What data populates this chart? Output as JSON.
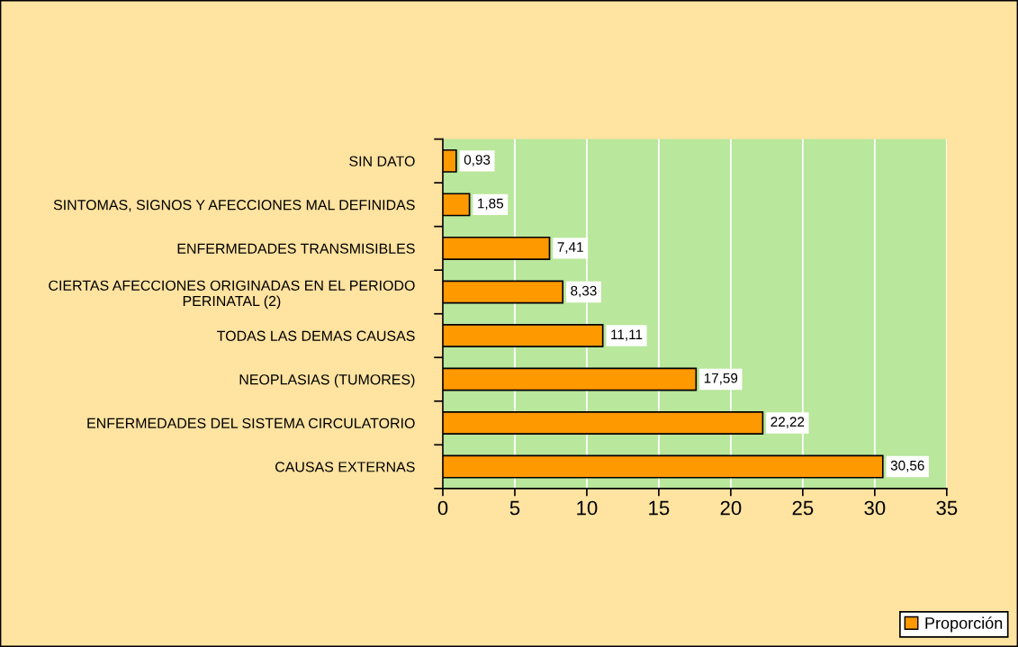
{
  "chart_data": {
    "type": "bar",
    "orientation": "horizontal",
    "categories": [
      "SIN DATO",
      "SINTOMAS, SIGNOS Y AFECCIONES MAL DEFINIDAS",
      "ENFERMEDADES TRANSMISIBLES",
      "CIERTAS AFECCIONES ORIGINADAS EN EL PERIODO\nPERINATAL (2)",
      "TODAS LAS DEMAS CAUSAS",
      "NEOPLASIAS (TUMORES)",
      "ENFERMEDADES DEL SISTEMA CIRCULATORIO",
      "CAUSAS EXTERNAS"
    ],
    "series": [
      {
        "name": "Proporción",
        "color": "#ff9900",
        "values": [
          0.93,
          1.85,
          7.41,
          8.33,
          11.11,
          17.59,
          22.22,
          30.56
        ],
        "value_labels": [
          "0,93",
          "1,85",
          "7,41",
          "8,33",
          "11,11",
          "17,59",
          "22,22",
          "30,56"
        ]
      }
    ],
    "xlim": [
      0,
      35
    ],
    "xticks": [
      0,
      5,
      10,
      15,
      20,
      25,
      30,
      35
    ],
    "grid": "x",
    "legend": "bottom right"
  }
}
